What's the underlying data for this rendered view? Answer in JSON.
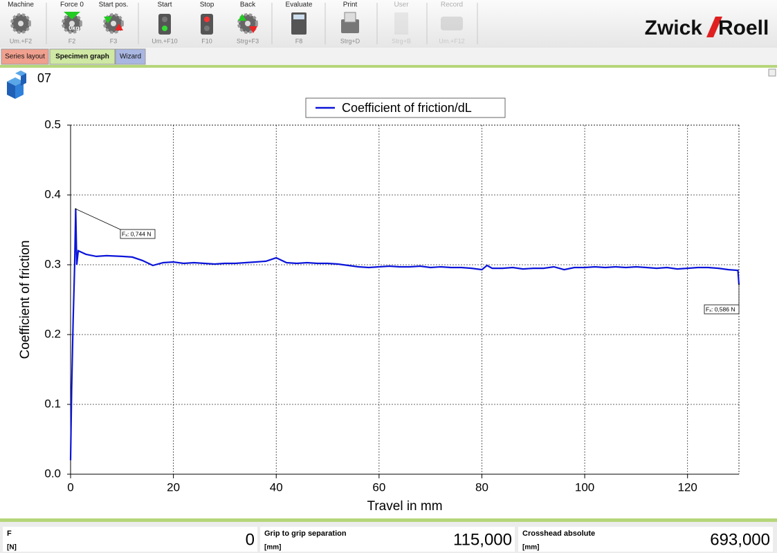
{
  "toolbar": {
    "buttons": [
      {
        "label": "Machine",
        "shortcut": "Um.+F2",
        "enabled": true
      },
      {
        "label": "Force 0",
        "shortcut": "F2",
        "icon_text": "0kg",
        "enabled": true
      },
      {
        "label": "Start pos.",
        "shortcut": "F3",
        "enabled": true
      },
      {
        "label": "Start",
        "shortcut": "Um.+F10",
        "enabled": true
      },
      {
        "label": "Stop",
        "shortcut": "F10",
        "enabled": true
      },
      {
        "label": "Back",
        "shortcut": "Strg+F3",
        "enabled": true
      },
      {
        "label": "Evaluate",
        "shortcut": "F8",
        "enabled": true
      },
      {
        "label": "Print",
        "shortcut": "Strg+D",
        "enabled": true
      },
      {
        "label": "User",
        "shortcut": "Strg+B",
        "enabled": false
      },
      {
        "label": "Record",
        "shortcut": "Um.+F12",
        "enabled": false
      }
    ]
  },
  "logo": {
    "left": "Zwick",
    "right": "Roell"
  },
  "tabs": [
    "Series layout",
    "Specimen graph",
    "Wizard"
  ],
  "specimen": "07",
  "chart_data": {
    "type": "line",
    "xlabel": "Travel in mm",
    "ylabel": "Coefficient of friction",
    "xlim": [
      0,
      130
    ],
    "ylim": [
      0,
      0.5
    ],
    "xticks": [
      0,
      20,
      40,
      60,
      80,
      100,
      120
    ],
    "yticks": [
      {
        "value": 0,
        "label": "0.0"
      },
      0.1,
      0.2,
      0.3,
      0.4,
      0.5
    ],
    "grid": true,
    "x": [
      0,
      0.2,
      0.5,
      0.8,
      1.0,
      1.2,
      1.5,
      3,
      5,
      7,
      10,
      12,
      14,
      16,
      18,
      20,
      22,
      24,
      26,
      28,
      30,
      32,
      34,
      36,
      38,
      40,
      42,
      44,
      46,
      48,
      50,
      52,
      54,
      56,
      58,
      60,
      62,
      64,
      66,
      68,
      70,
      72,
      74,
      76,
      78,
      80,
      81,
      82,
      84,
      86,
      88,
      90,
      92,
      94,
      96,
      98,
      100,
      102,
      104,
      106,
      108,
      110,
      112,
      114,
      116,
      118,
      120,
      122,
      124,
      126,
      128,
      129.8,
      130
    ],
    "series": [
      {
        "name": "Coefficient of friction/dL",
        "color": "#0a14d8",
        "values": [
          0.02,
          0.12,
          0.22,
          0.3,
          0.38,
          0.3,
          0.32,
          0.315,
          0.312,
          0.313,
          0.312,
          0.311,
          0.306,
          0.299,
          0.303,
          0.304,
          0.302,
          0.303,
          0.302,
          0.301,
          0.302,
          0.302,
          0.303,
          0.304,
          0.305,
          0.31,
          0.303,
          0.302,
          0.303,
          0.302,
          0.302,
          0.301,
          0.299,
          0.297,
          0.296,
          0.297,
          0.298,
          0.297,
          0.297,
          0.298,
          0.296,
          0.297,
          0.296,
          0.296,
          0.295,
          0.293,
          0.299,
          0.295,
          0.295,
          0.296,
          0.294,
          0.295,
          0.295,
          0.297,
          0.293,
          0.296,
          0.296,
          0.297,
          0.296,
          0.297,
          0.296,
          0.297,
          0.296,
          0.295,
          0.296,
          0.294,
          0.295,
          0.296,
          0.296,
          0.295,
          0.293,
          0.292,
          0.272
        ]
      }
    ],
    "annotations": [
      {
        "text": "Fₓ: 0,744 N",
        "x": 1.0,
        "y": 0.38
      },
      {
        "text": "Fₓ: 0,586 N",
        "x": 130,
        "y": 0.272
      }
    ]
  },
  "status": [
    {
      "label": "F",
      "unit": "[N]",
      "value": "0"
    },
    {
      "label": "Grip to grip separation",
      "unit": "[mm]",
      "value": "115,000"
    },
    {
      "label": "Crosshead absolute",
      "unit": "[mm]",
      "value": "693,000"
    }
  ]
}
